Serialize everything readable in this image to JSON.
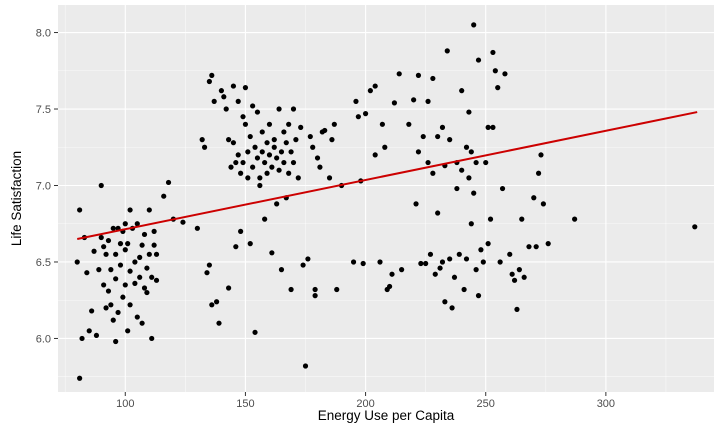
{
  "chart_data": {
    "type": "scatter",
    "title": "",
    "xlabel": "Energy Use per Capita",
    "ylabel": "Life Satisfaction",
    "xlim": [
      72,
      345
    ],
    "ylim": [
      5.65,
      8.18
    ],
    "x_ticks": [
      100,
      150,
      200,
      250,
      300
    ],
    "x_tick_labels": [
      "100",
      "150",
      "200",
      "250",
      "300"
    ],
    "y_ticks": [
      6.0,
      6.5,
      7.0,
      7.5,
      8.0
    ],
    "y_tick_labels": [
      "6.0",
      "6.5",
      "7.0",
      "7.5",
      "8.0"
    ],
    "grid": true,
    "panel_background": "#ebebeb",
    "grid_color": "#ffffff",
    "point_color": "#000000",
    "trend_line": {
      "type": "linear fit",
      "color": "#cc0000",
      "x": [
        80,
        338
      ],
      "y": [
        6.65,
        7.48
      ]
    },
    "points": [
      [
        80,
        6.5
      ],
      [
        81,
        6.84
      ],
      [
        82,
        6.0
      ],
      [
        81,
        5.74
      ],
      [
        83,
        6.66
      ],
      [
        84,
        6.43
      ],
      [
        85,
        6.05
      ],
      [
        86,
        6.18
      ],
      [
        87,
        6.57
      ],
      [
        88,
        6.02
      ],
      [
        89,
        6.45
      ],
      [
        90,
        7.0
      ],
      [
        90,
        6.66
      ],
      [
        91,
        6.35
      ],
      [
        91,
        6.6
      ],
      [
        92,
        6.2
      ],
      [
        92,
        6.55
      ],
      [
        93,
        6.31
      ],
      [
        93,
        6.64
      ],
      [
        94,
        6.22
      ],
      [
        94,
        6.45
      ],
      [
        95,
        6.12
      ],
      [
        95,
        6.72
      ],
      [
        96,
        6.39
      ],
      [
        96,
        6.55
      ],
      [
        96,
        5.98
      ],
      [
        97,
        6.17
      ],
      [
        97,
        6.72
      ],
      [
        98,
        6.48
      ],
      [
        98,
        6.62
      ],
      [
        99,
        6.27
      ],
      [
        99,
        6.7
      ],
      [
        100,
        6.35
      ],
      [
        100,
        6.58
      ],
      [
        100,
        6.75
      ],
      [
        101,
        6.05
      ],
      [
        101,
        6.62
      ],
      [
        102,
        6.84
      ],
      [
        102,
        6.44
      ],
      [
        102,
        6.22
      ],
      [
        103,
        6.72
      ],
      [
        104,
        6.5
      ],
      [
        104,
        6.36
      ],
      [
        105,
        6.14
      ],
      [
        105,
        6.75
      ],
      [
        106,
        6.53
      ],
      [
        106,
        6.4
      ],
      [
        107,
        6.1
      ],
      [
        107,
        6.61
      ],
      [
        108,
        6.33
      ],
      [
        108,
        6.68
      ],
      [
        109,
        6.46
      ],
      [
        109,
        6.3
      ],
      [
        110,
        6.84
      ],
      [
        110,
        6.55
      ],
      [
        111,
        6.4
      ],
      [
        111,
        6.0
      ],
      [
        112,
        6.61
      ],
      [
        112,
        6.7
      ],
      [
        113,
        6.38
      ],
      [
        113,
        6.55
      ],
      [
        116,
        6.93
      ],
      [
        118,
        7.02
      ],
      [
        120,
        6.78
      ],
      [
        124,
        6.76
      ],
      [
        130,
        6.72
      ],
      [
        132,
        7.3
      ],
      [
        133,
        7.25
      ],
      [
        134,
        6.43
      ],
      [
        135,
        6.48
      ],
      [
        135,
        7.68
      ],
      [
        136,
        7.72
      ],
      [
        136,
        6.22
      ],
      [
        137,
        7.55
      ],
      [
        138,
        6.24
      ],
      [
        139,
        6.1
      ],
      [
        140,
        7.62
      ],
      [
        141,
        7.58
      ],
      [
        142,
        7.5
      ],
      [
        143,
        7.3
      ],
      [
        143,
        6.33
      ],
      [
        144,
        7.12
      ],
      [
        145,
        7.28
      ],
      [
        145,
        7.65
      ],
      [
        146,
        7.15
      ],
      [
        146,
        6.6
      ],
      [
        147,
        7.55
      ],
      [
        147,
        7.2
      ],
      [
        148,
        7.08
      ],
      [
        148,
        6.7
      ],
      [
        149,
        7.45
      ],
      [
        149,
        7.15
      ],
      [
        150,
        7.64
      ],
      [
        150,
        7.4
      ],
      [
        151,
        7.22
      ],
      [
        151,
        7.05
      ],
      [
        152,
        7.32
      ],
      [
        152,
        6.62
      ],
      [
        153,
        7.52
      ],
      [
        153,
        7.12
      ],
      [
        154,
        7.25
      ],
      [
        154,
        6.04
      ],
      [
        155,
        7.48
      ],
      [
        155,
        7.18
      ],
      [
        156,
        7.05
      ],
      [
        156,
        7.0
      ],
      [
        157,
        7.35
      ],
      [
        157,
        7.22
      ],
      [
        158,
        7.15
      ],
      [
        158,
        6.78
      ],
      [
        159,
        7.28
      ],
      [
        159,
        7.08
      ],
      [
        160,
        7.4
      ],
      [
        160,
        7.2
      ],
      [
        161,
        7.12
      ],
      [
        161,
        6.56
      ],
      [
        162,
        7.3
      ],
      [
        162,
        7.25
      ],
      [
        163,
        7.18
      ],
      [
        163,
        6.88
      ],
      [
        164,
        7.5
      ],
      [
        164,
        7.1
      ],
      [
        165,
        7.22
      ],
      [
        165,
        6.45
      ],
      [
        166,
        7.35
      ],
      [
        166,
        7.15
      ],
      [
        167,
        7.28
      ],
      [
        167,
        6.92
      ],
      [
        168,
        7.4
      ],
      [
        168,
        7.08
      ],
      [
        169,
        7.22
      ],
      [
        169,
        6.32
      ],
      [
        170,
        7.5
      ],
      [
        170,
        7.15
      ],
      [
        171,
        7.3
      ],
      [
        172,
        7.05
      ],
      [
        173,
        7.38
      ],
      [
        174,
        6.48
      ],
      [
        175,
        5.82
      ],
      [
        176,
        6.52
      ],
      [
        177,
        7.32
      ],
      [
        178,
        7.25
      ],
      [
        179,
        6.28
      ],
      [
        179,
        6.32
      ],
      [
        180,
        7.18
      ],
      [
        181,
        7.12
      ],
      [
        182,
        7.35
      ],
      [
        183,
        7.36
      ],
      [
        185,
        7.05
      ],
      [
        186,
        7.3
      ],
      [
        187,
        7.4
      ],
      [
        188,
        6.32
      ],
      [
        190,
        7.0
      ],
      [
        195,
        6.5
      ],
      [
        196,
        7.55
      ],
      [
        197,
        7.45
      ],
      [
        198,
        7.03
      ],
      [
        199,
        6.49
      ],
      [
        200,
        7.47
      ],
      [
        202,
        7.62
      ],
      [
        204,
        7.2
      ],
      [
        204,
        7.65
      ],
      [
        206,
        6.5
      ],
      [
        207,
        7.4
      ],
      [
        208,
        7.25
      ],
      [
        209,
        6.32
      ],
      [
        210,
        6.34
      ],
      [
        211,
        6.42
      ],
      [
        212,
        7.54
      ],
      [
        214,
        7.73
      ],
      [
        215,
        6.45
      ],
      [
        218,
        7.4
      ],
      [
        220,
        7.56
      ],
      [
        221,
        6.88
      ],
      [
        222,
        7.72
      ],
      [
        222,
        7.22
      ],
      [
        223,
        6.49
      ],
      [
        224,
        7.32
      ],
      [
        225,
        6.49
      ],
      [
        226,
        7.55
      ],
      [
        226,
        7.15
      ],
      [
        227,
        6.55
      ],
      [
        228,
        7.7
      ],
      [
        228,
        7.08
      ],
      [
        229,
        6.42
      ],
      [
        230,
        6.82
      ],
      [
        230,
        7.32
      ],
      [
        231,
        6.46
      ],
      [
        232,
        7.38
      ],
      [
        232,
        6.5
      ],
      [
        233,
        7.13
      ],
      [
        233,
        6.24
      ],
      [
        234,
        7.88
      ],
      [
        235,
        6.52
      ],
      [
        235,
        7.3
      ],
      [
        236,
        6.2
      ],
      [
        237,
        6.4
      ],
      [
        238,
        7.15
      ],
      [
        238,
        6.98
      ],
      [
        239,
        6.55
      ],
      [
        240,
        7.62
      ],
      [
        240,
        7.1
      ],
      [
        241,
        6.32
      ],
      [
        242,
        7.25
      ],
      [
        242,
        6.52
      ],
      [
        243,
        7.05
      ],
      [
        243,
        7.48
      ],
      [
        244,
        6.75
      ],
      [
        244,
        7.22
      ],
      [
        245,
        8.05
      ],
      [
        245,
        6.95
      ],
      [
        246,
        6.45
      ],
      [
        246,
        7.15
      ],
      [
        247,
        7.82
      ],
      [
        247,
        6.28
      ],
      [
        248,
        6.58
      ],
      [
        249,
        6.5
      ],
      [
        250,
        7.15
      ],
      [
        251,
        7.38
      ],
      [
        251,
        6.62
      ],
      [
        252,
        6.78
      ],
      [
        253,
        7.87
      ],
      [
        253,
        7.38
      ],
      [
        254,
        7.75
      ],
      [
        255,
        7.64
      ],
      [
        256,
        6.5
      ],
      [
        257,
        6.98
      ],
      [
        258,
        7.73
      ],
      [
        260,
        6.55
      ],
      [
        261,
        6.42
      ],
      [
        262,
        6.38
      ],
      [
        263,
        6.19
      ],
      [
        264,
        6.45
      ],
      [
        266,
        6.4
      ],
      [
        265,
        6.78
      ],
      [
        268,
        6.6
      ],
      [
        270,
        6.92
      ],
      [
        271,
        6.6
      ],
      [
        272,
        7.08
      ],
      [
        273,
        7.2
      ],
      [
        274,
        6.88
      ],
      [
        276,
        6.62
      ],
      [
        287,
        6.78
      ],
      [
        337,
        6.73
      ]
    ]
  }
}
